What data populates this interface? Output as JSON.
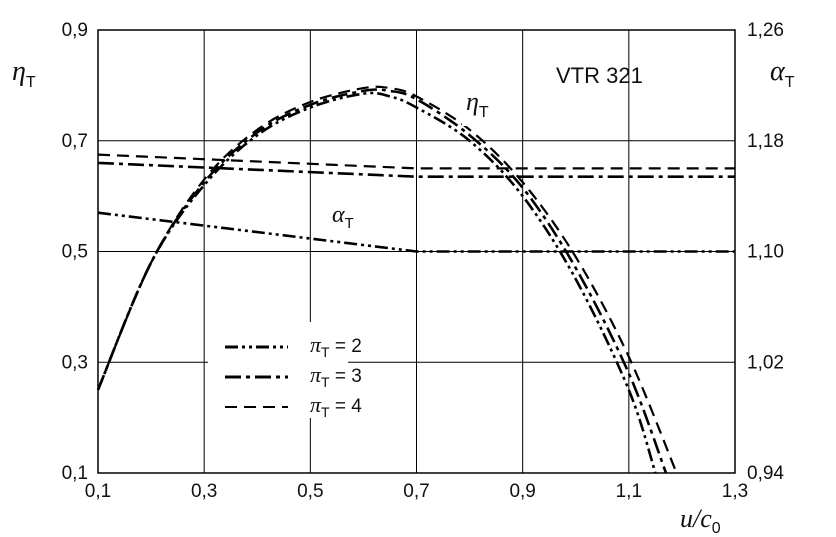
{
  "chart_data": {
    "type": "line",
    "title": "VTR 321",
    "xlabel": {
      "sym": "u/c",
      "sub": "0"
    },
    "ylabel_left": {
      "sym": "η",
      "sub": "T"
    },
    "ylabel_right": {
      "sym": "α",
      "sub": "T"
    },
    "xlim": [
      0.1,
      1.3
    ],
    "ylim_left": [
      0.1,
      0.9
    ],
    "ylim_right": [
      0.94,
      1.26
    ],
    "x_ticks": [
      "0,1",
      "0,3",
      "0,5",
      "0,7",
      "0,9",
      "1,1",
      "1,3"
    ],
    "y_left_ticks": [
      "0,1",
      "0,3",
      "0,5",
      "0,7",
      "0,9"
    ],
    "y_right_ticks": [
      "0,94",
      "1,02",
      "1,10",
      "1,18",
      "1,26"
    ],
    "grid": true,
    "curve_label_eta": {
      "sym": "η",
      "sub": "T"
    },
    "curve_label_alpha": {
      "sym": "α",
      "sub": "T"
    },
    "legend": [
      {
        "sym": "π",
        "sub": "T",
        "eq": " = 2",
        "style": "dash-dot-dot"
      },
      {
        "sym": "π",
        "sub": "T",
        "eq": " = 3",
        "style": "dash-dot"
      },
      {
        "sym": "π",
        "sub": "T",
        "eq": " = 4",
        "style": "dashed"
      }
    ],
    "series": [
      {
        "quantity": "eta_T",
        "legend": "π_T = 2",
        "style": "dash-dot-dot",
        "x": [
          0.1,
          0.2,
          0.3,
          0.4,
          0.5,
          0.6,
          0.65,
          0.7,
          0.8,
          0.9,
          1.0,
          1.1,
          1.15
        ],
        "y": [
          0.25,
          0.48,
          0.62,
          0.71,
          0.76,
          0.785,
          0.78,
          0.76,
          0.7,
          0.6,
          0.45,
          0.25,
          0.1
        ]
      },
      {
        "quantity": "eta_T",
        "legend": "π_T = 3",
        "style": "dash-dot",
        "x": [
          0.1,
          0.2,
          0.3,
          0.4,
          0.5,
          0.6,
          0.65,
          0.7,
          0.8,
          0.9,
          1.0,
          1.1,
          1.17
        ],
        "y": [
          0.25,
          0.48,
          0.625,
          0.715,
          0.765,
          0.79,
          0.79,
          0.775,
          0.71,
          0.615,
          0.47,
          0.28,
          0.1
        ]
      },
      {
        "quantity": "eta_T",
        "legend": "π_T = 4",
        "style": "dashed",
        "x": [
          0.1,
          0.2,
          0.3,
          0.4,
          0.5,
          0.6,
          0.65,
          0.7,
          0.8,
          0.9,
          1.0,
          1.1,
          1.19
        ],
        "y": [
          0.25,
          0.48,
          0.63,
          0.72,
          0.77,
          0.795,
          0.795,
          0.78,
          0.72,
          0.625,
          0.49,
          0.31,
          0.1
        ]
      },
      {
        "quantity": "alpha_T",
        "legend": "π_T = 2",
        "style": "dash-dot-dot",
        "x": [
          0.1,
          0.7,
          1.3
        ],
        "y": [
          1.128,
          1.1,
          1.1
        ]
      },
      {
        "quantity": "alpha_T",
        "legend": "π_T = 3",
        "style": "dash-dot",
        "x": [
          0.1,
          0.7,
          1.3
        ],
        "y": [
          1.164,
          1.154,
          1.154
        ]
      },
      {
        "quantity": "alpha_T",
        "legend": "π_T = 4",
        "style": "dashed",
        "x": [
          0.1,
          0.7,
          1.3
        ],
        "y": [
          1.17,
          1.16,
          1.16
        ]
      }
    ]
  }
}
